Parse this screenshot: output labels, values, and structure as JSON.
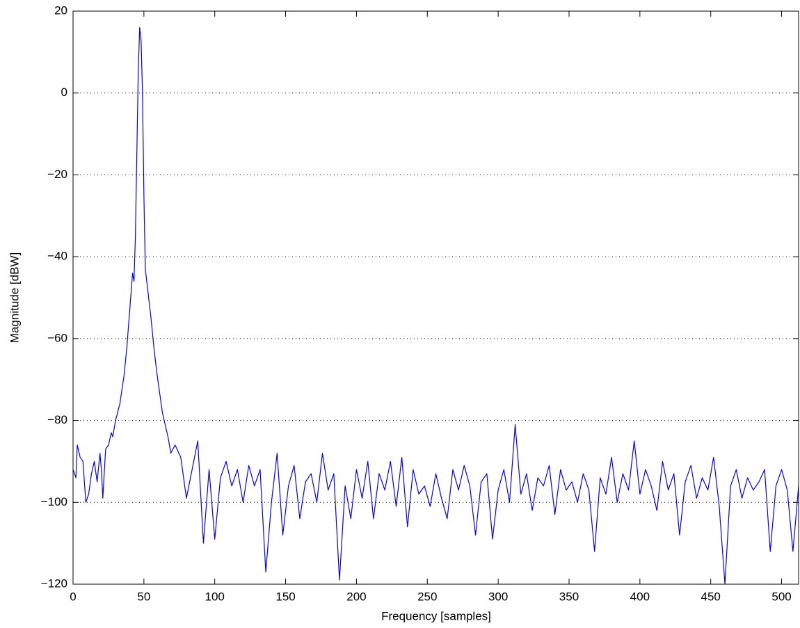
{
  "chart_data": {
    "type": "line",
    "xlabel": "Frequency [samples]",
    "ylabel": "Magnitude [dBW]",
    "xlim": [
      0,
      512
    ],
    "ylim": [
      -120,
      20
    ],
    "xticks": [
      0,
      50,
      100,
      150,
      200,
      250,
      300,
      350,
      400,
      450,
      500
    ],
    "yticks": [
      {
        "value": -120,
        "label": "−120"
      },
      {
        "value": -100,
        "label": "−100"
      },
      {
        "value": -80,
        "label": "−80"
      },
      {
        "value": -60,
        "label": "−60"
      },
      {
        "value": -40,
        "label": "−40"
      },
      {
        "value": -20,
        "label": "−20"
      },
      0,
      20
    ],
    "grid": true,
    "x": [
      0,
      2,
      3,
      5,
      7,
      9,
      11,
      13,
      15,
      17,
      19,
      20,
      21,
      23,
      25,
      27,
      28,
      30,
      33,
      36,
      38,
      40,
      42,
      43,
      44,
      45,
      46,
      47,
      48,
      49,
      50,
      51,
      53,
      55,
      57,
      59,
      61,
      63,
      65,
      67,
      69,
      72,
      76,
      80,
      84,
      88,
      92,
      96,
      100,
      104,
      108,
      112,
      116,
      120,
      124,
      128,
      132,
      136,
      140,
      144,
      148,
      152,
      156,
      160,
      164,
      168,
      172,
      176,
      180,
      184,
      188,
      192,
      196,
      200,
      204,
      208,
      212,
      216,
      220,
      224,
      228,
      232,
      236,
      240,
      244,
      248,
      252,
      256,
      260,
      264,
      268,
      272,
      276,
      280,
      284,
      288,
      292,
      296,
      300,
      304,
      308,
      312,
      316,
      320,
      324,
      328,
      332,
      336,
      340,
      344,
      348,
      352,
      356,
      360,
      364,
      368,
      372,
      376,
      380,
      384,
      388,
      392,
      396,
      400,
      404,
      408,
      412,
      416,
      420,
      424,
      428,
      432,
      436,
      440,
      444,
      448,
      452,
      456,
      460,
      464,
      468,
      472,
      476,
      480,
      484,
      488,
      492,
      496,
      500,
      504,
      508,
      512
    ],
    "series": [
      {
        "color": "#0000ff",
        "values": [
          -92,
          -94,
          -86,
          -89,
          -90,
          -100,
          -98,
          -93,
          -90,
          -95,
          -88,
          -92,
          -99,
          -87,
          -86,
          -83,
          -84,
          -80,
          -76,
          -69,
          -62,
          -53,
          -44,
          -46,
          -35,
          -15,
          5,
          16,
          13,
          0,
          -25,
          -43,
          -49,
          -55,
          -62,
          -68,
          -73,
          -78,
          -81,
          -84,
          -88,
          -86,
          -89,
          -99,
          -92,
          -85,
          -110,
          -92,
          -109,
          -94,
          -90,
          -96,
          -92,
          -100,
          -91,
          -96,
          -92,
          -117,
          -100,
          -88,
          -108,
          -96,
          -91,
          -104,
          -95,
          -93,
          -100,
          -88,
          -97,
          -93,
          -119,
          -96,
          -104,
          -92,
          -99,
          -90,
          -104,
          -93,
          -97,
          -90,
          -101,
          -89,
          -106,
          -92,
          -98,
          -96,
          -101,
          -93,
          -99,
          -104,
          -92,
          -97,
          -91,
          -96,
          -108,
          -95,
          -93,
          -109,
          -97,
          -92,
          -100,
          -81,
          -98,
          -93,
          -102,
          -94,
          -96,
          -91,
          -103,
          -92,
          -97,
          -95,
          -100,
          -93,
          -97,
          -112,
          -94,
          -98,
          -89,
          -100,
          -93,
          -97,
          -85,
          -98,
          -92,
          -96,
          -102,
          -90,
          -97,
          -93,
          -108,
          -95,
          -91,
          -99,
          -94,
          -97,
          -89,
          -101,
          -120,
          -96,
          -92,
          -99,
          -94,
          -97,
          -95,
          -92,
          -112,
          -96,
          -92,
          -97,
          -112,
          -96
        ]
      }
    ]
  }
}
